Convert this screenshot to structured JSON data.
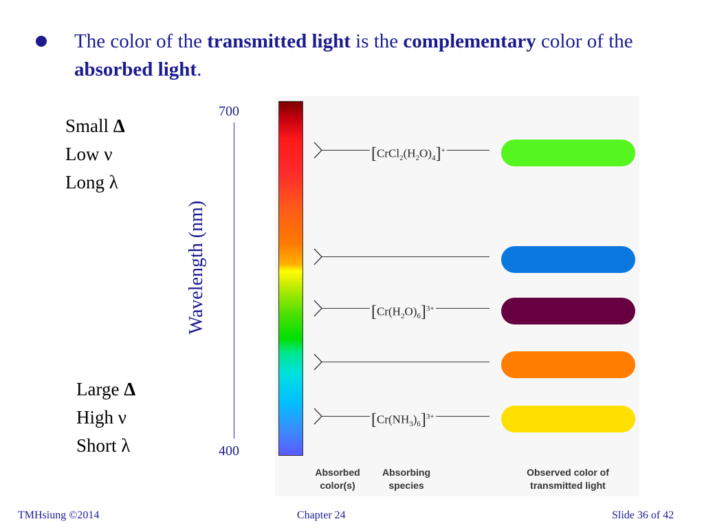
{
  "bullet": {
    "parts": [
      {
        "t": "The color of the ",
        "b": false
      },
      {
        "t": "transmitted light",
        "b": true
      },
      {
        "t": " is the ",
        "b": false
      },
      {
        "t": "complementary",
        "b": true
      },
      {
        "t": " color of the ",
        "b": false
      },
      {
        "t": "absorbed light",
        "b": true
      },
      {
        "t": ".",
        "b": false
      }
    ]
  },
  "small_block": {
    "line1": "Small",
    "line1_symbol": "Δ",
    "line2": "Low ν",
    "line3": "Long λ"
  },
  "large_block": {
    "line1": "Large",
    "line1_symbol": "Δ",
    "line2": "High ν",
    "line3": "Short λ"
  },
  "axis": {
    "title": "Wavelength (nm)",
    "tick_top": "700",
    "tick_bottom": "400"
  },
  "rows": [
    {
      "species": "crcl2",
      "observed_color": "#55f520",
      "top": 0
    },
    {
      "species": "",
      "observed_color": "#0b78e0",
      "top": 0
    },
    {
      "species": "crh2o6",
      "observed_color": "#660040",
      "top": 0
    },
    {
      "species": "",
      "observed_color": "#ff7d00",
      "top": 0
    },
    {
      "species": "crnh36",
      "observed_color": "#ffe000",
      "top": 0
    }
  ],
  "species_text": {
    "crcl2": {
      "a": "CrCl",
      "s1": "2",
      "b": "(H",
      "s2": "2",
      "c": "O)",
      "s3": "4",
      "charge": "+"
    },
    "crh2o6": {
      "a": "Cr(H",
      "s1": "2",
      "b": "O)",
      "s2": "6",
      "charge": "3+"
    },
    "crnh36": {
      "a": "Cr(NH",
      "s1": "3",
      "b": ")",
      "s2": "6",
      "charge": "3+"
    }
  },
  "captions": {
    "absorbed": [
      "Absorbed",
      "color(s)"
    ],
    "species": [
      "Absorbing",
      "species"
    ],
    "observed": [
      "Observed color of",
      "transmitted light"
    ]
  },
  "footer": {
    "left": "TMHsiung  ©2014",
    "center": "Chapter 24",
    "right": "Slide 36 of 42"
  }
}
